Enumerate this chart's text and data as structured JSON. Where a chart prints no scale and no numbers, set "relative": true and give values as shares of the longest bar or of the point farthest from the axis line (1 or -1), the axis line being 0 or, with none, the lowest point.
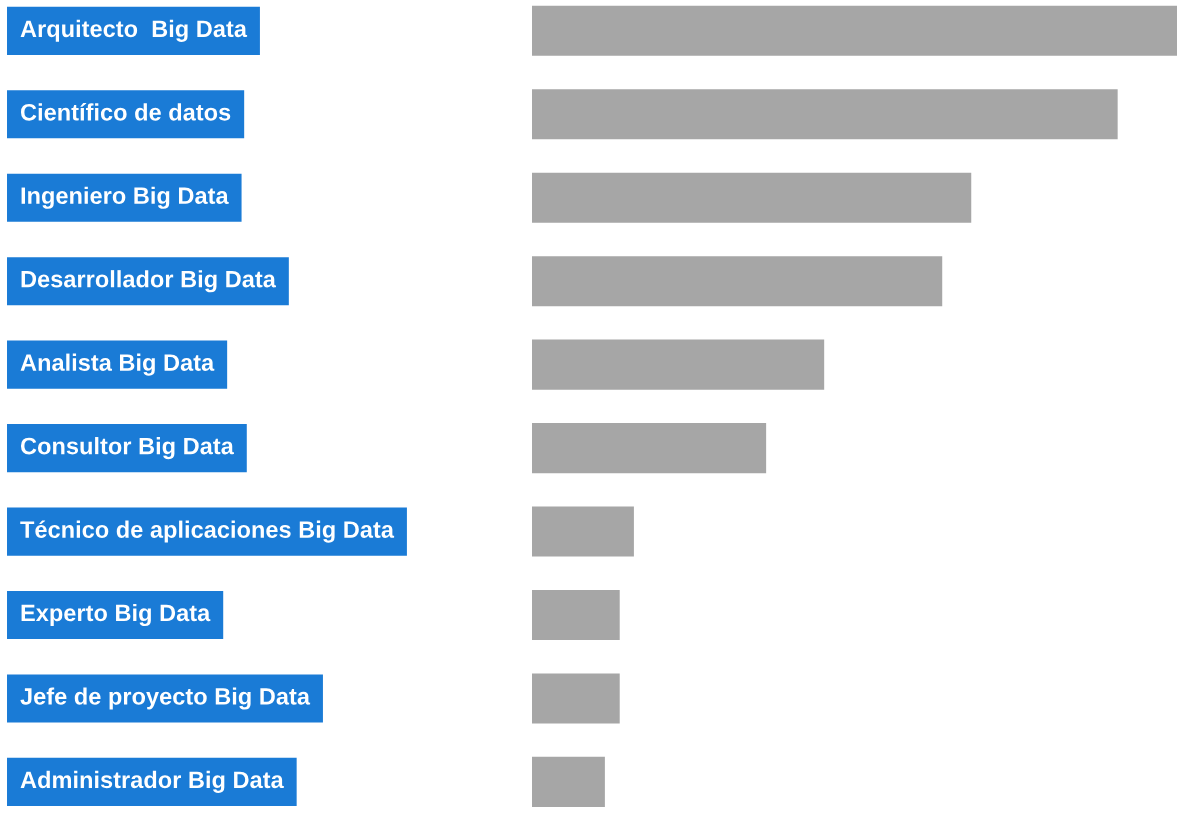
{
  "chart_data": {
    "type": "bar",
    "orientation": "horizontal",
    "relative": true,
    "categories": [
      "Arquitecto  Big Data",
      "Científico de datos",
      "Ingeniero Big Data",
      "Desarrollador Big Data",
      "Analista Big Data",
      "Consultor Big Data",
      "Técnico de aplicaciones Big Data",
      "Experto Big Data",
      "Jefe de proyecto Big Data",
      "Administrador Big Data"
    ],
    "values": [
      1,
      0.908,
      0.681,
      0.636,
      0.453,
      0.363,
      0.158,
      0.136,
      0.136,
      0.113
    ],
    "color": "#a6a6a6"
  }
}
